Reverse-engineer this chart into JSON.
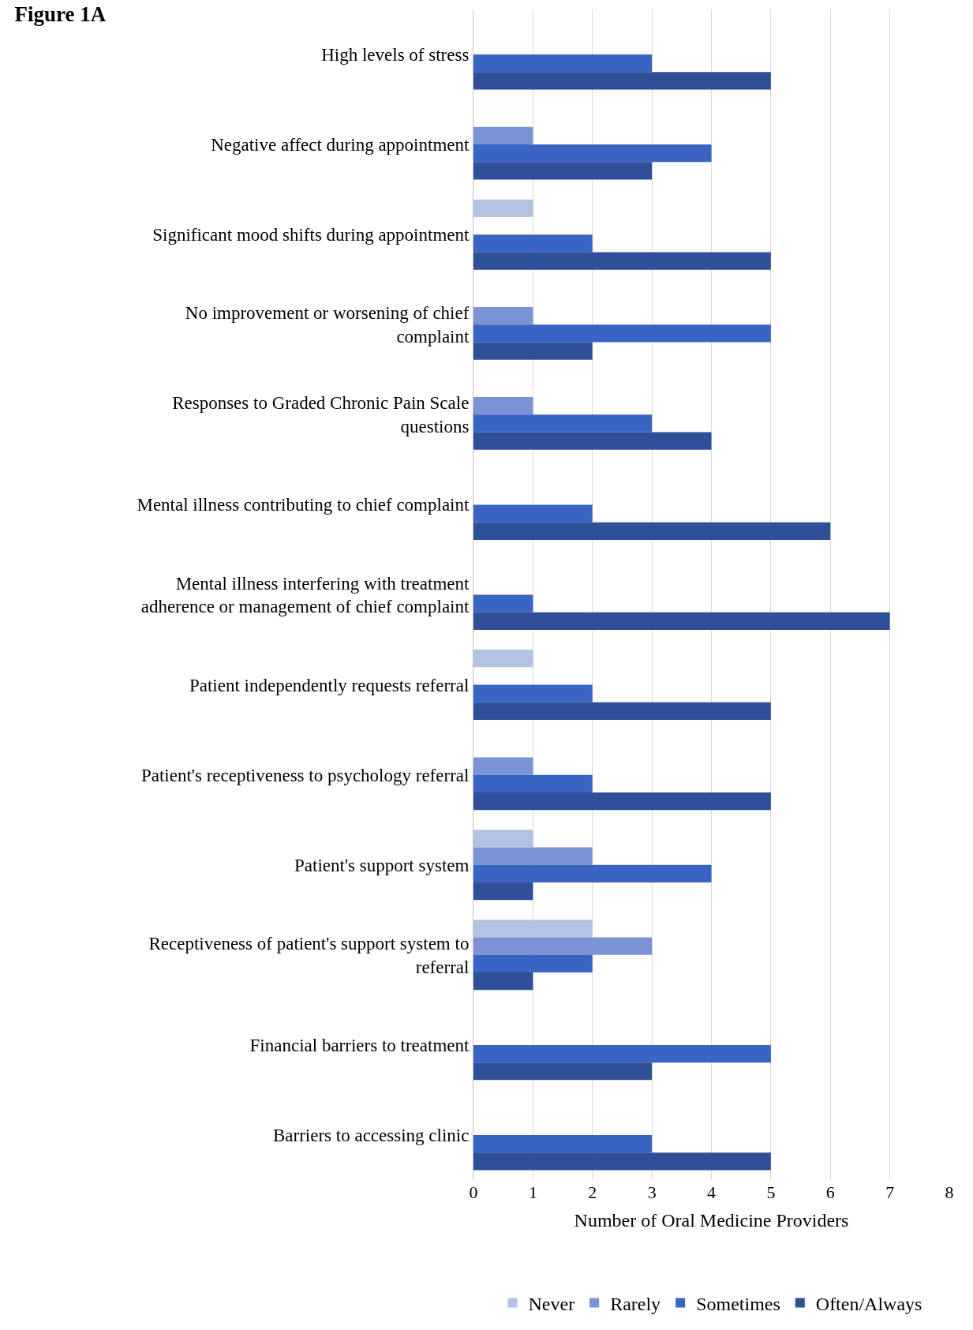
{
  "chart_data": {
    "type": "bar",
    "orientation": "horizontal",
    "title": "Figure 1A",
    "xlabel": "Number of Oral Medicine Providers",
    "categories": [
      "High levels of stress",
      "Negative affect during appointment",
      "Significant mood shifts during appointment",
      "No improvement or worsening of chief\ncomplaint",
      "Responses to Graded Chronic Pain Scale\nquestions",
      "Mental illness contributing to chief complaint",
      "Mental illness interfering with treatment\nadherence or management of chief complaint",
      "Patient independently requests referral",
      "Patient's receptiveness to psychology referral",
      "Patient's support system",
      "Receptiveness of patient's support system to\nreferral",
      "Financial barriers to treatment",
      "Barriers to accessing clinic"
    ],
    "series": [
      {
        "name": "Never",
        "color": "#b4c2e4",
        "values": [
          0,
          0,
          1,
          0,
          0,
          0,
          0,
          1,
          0,
          1,
          2,
          0,
          0
        ]
      },
      {
        "name": "Rarely",
        "color": "#7b93d5",
        "values": [
          0,
          1,
          0,
          1,
          1,
          0,
          0,
          0,
          1,
          2,
          3,
          0,
          0
        ]
      },
      {
        "name": "Sometimes",
        "color": "#3a64c4",
        "values": [
          3,
          4,
          2,
          5,
          3,
          2,
          1,
          2,
          2,
          4,
          2,
          5,
          3
        ]
      },
      {
        "name": "Often/Always",
        "color": "#2f4f99",
        "values": [
          5,
          3,
          5,
          2,
          4,
          6,
          7,
          5,
          5,
          1,
          1,
          3,
          5
        ]
      }
    ],
    "xlim": [
      0,
      8
    ],
    "xticks": [
      0,
      1,
      2,
      3,
      4,
      5,
      6,
      7,
      8
    ],
    "grid": "x",
    "legend": "bottom"
  }
}
